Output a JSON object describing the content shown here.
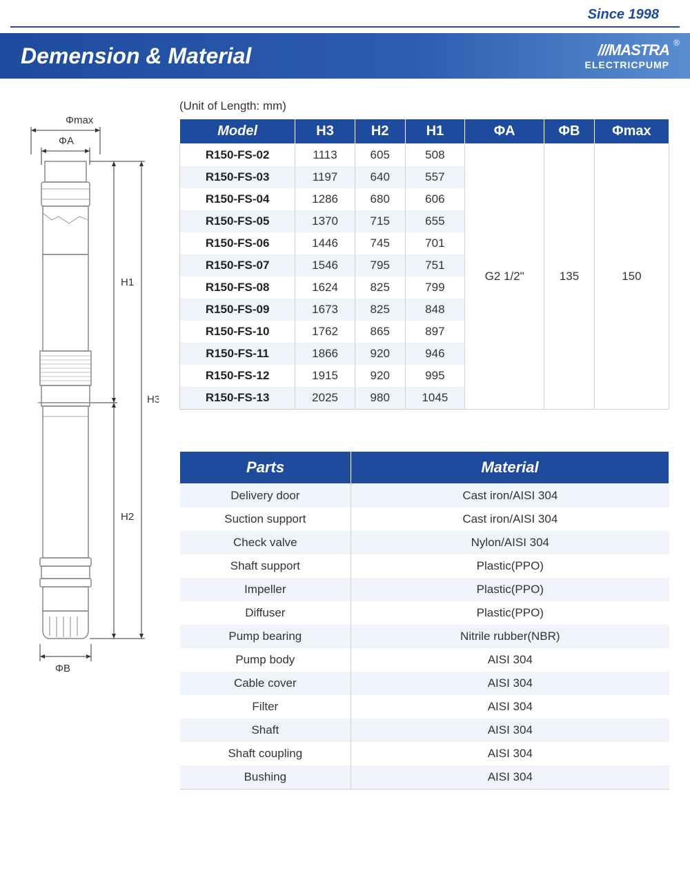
{
  "header": {
    "since": "Since 1998",
    "title": "Demension & Material",
    "logo_top": "///MASTRA",
    "logo_bottom": "ELECTRICPUMP"
  },
  "colors": {
    "primary": "#1e4b9e",
    "stripe_bg": "#f0f3f9",
    "border": "#d0d0d0",
    "text": "#333333"
  },
  "unit_label": "(Unit of Length: mm)",
  "dimension_table": {
    "headers": [
      "Model",
      "H3",
      "H2",
      "H1",
      "ΦA",
      "ΦB",
      "Φmax"
    ],
    "phi_a": "G2 1/2\"",
    "phi_b": "135",
    "phi_max": "150",
    "rows": [
      {
        "model": "R150-FS-02",
        "h3": "1113",
        "h2": "605",
        "h1": "508"
      },
      {
        "model": "R150-FS-03",
        "h3": "1197",
        "h2": "640",
        "h1": "557"
      },
      {
        "model": "R150-FS-04",
        "h3": "1286",
        "h2": "680",
        "h1": "606"
      },
      {
        "model": "R150-FS-05",
        "h3": "1370",
        "h2": "715",
        "h1": "655"
      },
      {
        "model": "R150-FS-06",
        "h3": "1446",
        "h2": "745",
        "h1": "701"
      },
      {
        "model": "R150-FS-07",
        "h3": "1546",
        "h2": "795",
        "h1": "751"
      },
      {
        "model": "R150-FS-08",
        "h3": "1624",
        "h2": "825",
        "h1": "799"
      },
      {
        "model": "R150-FS-09",
        "h3": "1673",
        "h2": "825",
        "h1": "848"
      },
      {
        "model": "R150-FS-10",
        "h3": "1762",
        "h2": "865",
        "h1": "897"
      },
      {
        "model": "R150-FS-11",
        "h3": "1866",
        "h2": "920",
        "h1": "946"
      },
      {
        "model": "R150-FS-12",
        "h3": "1915",
        "h2": "920",
        "h1": "995"
      },
      {
        "model": "R150-FS-13",
        "h3": "2025",
        "h2": "980",
        "h1": "1045"
      }
    ]
  },
  "parts_table": {
    "headers": [
      "Parts",
      "Material"
    ],
    "rows": [
      {
        "part": "Delivery door",
        "material": "Cast iron/AISI 304"
      },
      {
        "part": "Suction support",
        "material": "Cast iron/AISI 304"
      },
      {
        "part": "Check valve",
        "material": "Nylon/AISI 304"
      },
      {
        "part": "Shaft support",
        "material": "Plastic(PPO)"
      },
      {
        "part": "Impeller",
        "material": "Plastic(PPO)"
      },
      {
        "part": "Diffuser",
        "material": "Plastic(PPO)"
      },
      {
        "part": "Pump bearing",
        "material": "Nitrile rubber(NBR)"
      },
      {
        "part": "Pump body",
        "material": "AISI 304"
      },
      {
        "part": "Cable cover",
        "material": "AISI 304"
      },
      {
        "part": "Filter",
        "material": "AISI 304"
      },
      {
        "part": "Shaft",
        "material": "AISI 304"
      },
      {
        "part": "Shaft coupling",
        "material": "AISI 304"
      },
      {
        "part": "Bushing",
        "material": "AISI 304"
      }
    ]
  },
  "diagram": {
    "labels": {
      "phi_max": "Φmax",
      "phi_a": "ΦA",
      "phi_b": "ΦB",
      "h1": "H1",
      "h2": "H2",
      "h3": "H3"
    }
  }
}
